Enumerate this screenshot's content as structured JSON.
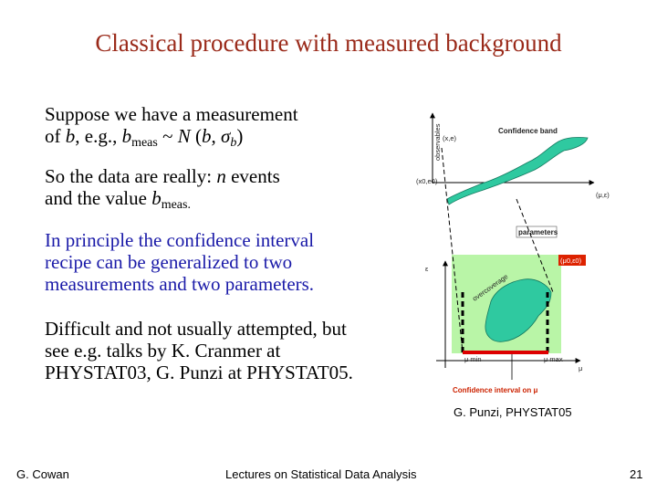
{
  "title": "Classical procedure with measured background",
  "block1": {
    "line1": "Suppose we have a measurement",
    "l2_of": "of ",
    "l2_b": "b",
    "l2_eg": ",   e.g., ",
    "l2_b2": "b",
    "l2_sub": "meas",
    "l2_tilde": " ~ ",
    "l2_N": "N",
    "l2_open": " (",
    "l2_b3": "b",
    "l2_comma": ", ",
    "l2_sigma": "σ",
    "l2_sub2": "b",
    "l2_close": ")"
  },
  "block2": {
    "line1": "So the data are really: ",
    "line1_n": "n",
    "line1_end": " events",
    "line2": "and the value ",
    "line2_b": "b",
    "line2_sub": "meas."
  },
  "block3": {
    "lines": [
      "In principle the confidence interval",
      "recipe can be generalized to two",
      "measurements and two parameters."
    ]
  },
  "block4": {
    "lines": [
      "Difficult and not usually attempted, but",
      "see e.g. talks by K. Cranmer at",
      "PHYSTAT03, G. Punzi at PHYSTAT05."
    ]
  },
  "diagram": {
    "observables": "observables",
    "confidence_band": "Confidence band",
    "x_e": "(x,e)",
    "x0_e0": "(x0,e0)",
    "parameters": "parameters",
    "mu_eps": "(μ,ε)",
    "eps": "ε",
    "mu": "μ",
    "overcoverage": "overcoverage",
    "mu0_eps0": "(μ0,ε0)",
    "mu_min": "μ min",
    "mu_max": "μ max",
    "interval_label": "Confidence interval on μ",
    "colors": {
      "band": "#2fc9a0",
      "region": "#b9f5a7",
      "interval": "#dd0000",
      "dashed": "#000000"
    }
  },
  "credit": "G. Punzi, PHYSTAT05",
  "footer": {
    "author": "G. Cowan",
    "course": "Lectures on Statistical Data Analysis",
    "page": "21"
  }
}
